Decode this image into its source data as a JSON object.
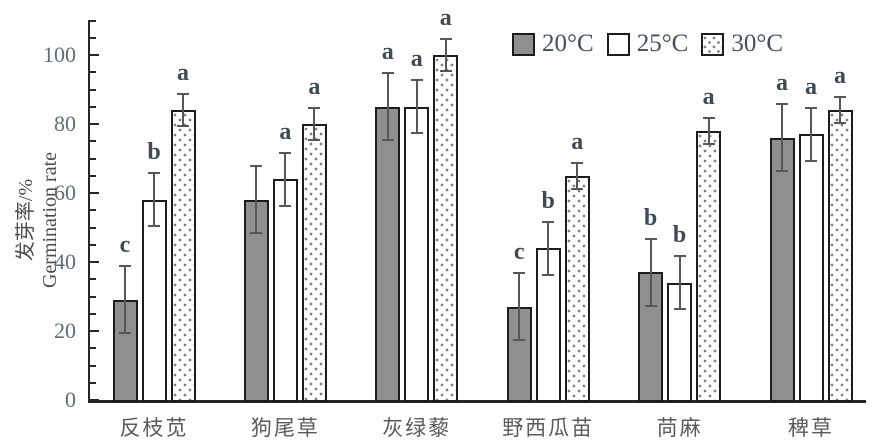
{
  "chart_data": {
    "type": "bar",
    "title": "",
    "categories": [
      "反枝苋",
      "狗尾草",
      "灰绿藜",
      "野西瓜苗",
      "苘麻",
      "稗草"
    ],
    "series": [
      {
        "name": "20°C",
        "style": "gray",
        "values": [
          29,
          58,
          85,
          27,
          37,
          76
        ],
        "errors": [
          10,
          10,
          10,
          10,
          10,
          10
        ],
        "letters": [
          "c",
          "",
          "a",
          "c",
          "b",
          "a"
        ]
      },
      {
        "name": "25°C",
        "style": "white",
        "values": [
          58,
          64,
          85,
          44,
          34,
          77
        ],
        "errors": [
          8,
          8,
          8,
          8,
          8,
          8
        ],
        "letters": [
          "b",
          "a",
          "a",
          "b",
          "b",
          "a"
        ]
      },
      {
        "name": "30°C",
        "style": "dotted",
        "values": [
          84,
          80,
          100,
          65,
          78,
          84
        ],
        "errors": [
          5,
          5,
          5,
          4,
          4,
          4
        ],
        "letters": [
          "a",
          "a",
          "a",
          "a",
          "a",
          "a"
        ]
      }
    ],
    "ylabel_zh": "发芽率/%",
    "ylabel_en": "Germination rate",
    "xlabel": "",
    "ylim": [
      0,
      110
    ],
    "yticks": [
      0,
      20,
      40,
      60,
      80,
      100
    ],
    "minor_tick_step": 5,
    "grid": false,
    "legend_position": "top-right-inside"
  },
  "colors": {
    "background": "#ffffff",
    "bar_fill_gray": "#8f8f8f",
    "bar_fill_white": "#ffffff",
    "bar_dot": "#7f7f7f",
    "bar_border": "#1c1c1c",
    "error_bar": "#575757",
    "axis": "#262626",
    "y_tick_label": "#5d6d7d",
    "x_category_label": "#5a5a5a",
    "significance_letter": "#3f4a57",
    "legend_text": "#42505e"
  }
}
